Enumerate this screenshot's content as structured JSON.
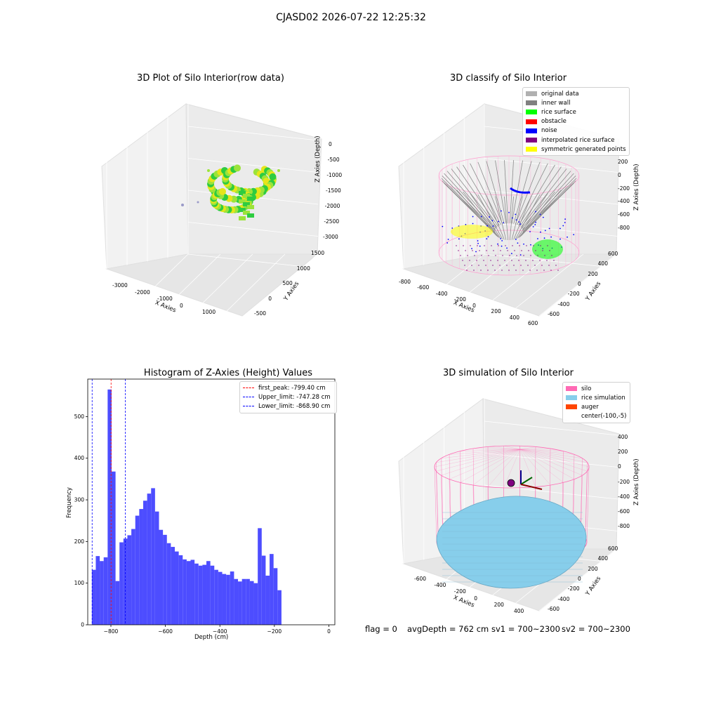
{
  "figure": {
    "suptitle": "CJASD02 2026-07-22 12:25:32",
    "status_line": {
      "flag": "flag = 0",
      "avg_depth": "avgDepth = 762 cm",
      "sv1": "sv1 = 700~2300",
      "sv2": "sv2 = 700~2300"
    }
  },
  "chart_data": [
    {
      "type": "scatter",
      "projection": "3d",
      "title": "3D Plot of Silo Interior(row data)",
      "xlabel": "X Axies",
      "ylabel": "Y Axies",
      "zlabel": "Z Axies (Depth)",
      "xticks": [
        "-3000",
        "-2000",
        "-1000",
        "0",
        "1000"
      ],
      "yticks": [
        "-500",
        "0",
        "500",
        "1000",
        "1500"
      ],
      "zticks": [
        "0",
        "-500",
        "-1000",
        "-1500",
        "-2000",
        "-2500",
        "-3000"
      ],
      "colormap": [
        "#2ecc40",
        "#9be33a",
        "#e5e51a"
      ],
      "note_colors": {
        "outlier": "#9a9ac8"
      }
    },
    {
      "type": "scatter",
      "projection": "3d",
      "title": "3D classify of Silo Interior",
      "xlabel": "X Axies",
      "ylabel": "Y Axies",
      "zlabel": "Z Axies (Depth)",
      "xticks": [
        "-800",
        "-600",
        "-400",
        "-200",
        "0",
        "200",
        "400",
        "600"
      ],
      "yticks": [
        "-600",
        "-400",
        "-200",
        "0",
        "200",
        "400",
        "600"
      ],
      "zticks": [
        "200",
        "0",
        "-200",
        "-400",
        "-600",
        "-800"
      ],
      "legend": [
        {
          "label": "original data",
          "color": "#b0b0b0"
        },
        {
          "label": "inner wall",
          "color": "#808080"
        },
        {
          "label": "rice surface",
          "color": "#00ff00"
        },
        {
          "label": "obstacle",
          "color": "#ff0000"
        },
        {
          "label": "noise",
          "color": "#0000ff"
        },
        {
          "label": "interpolated rice surface",
          "color": "#800080"
        },
        {
          "label": "symmetric generated points",
          "color": "#ffff00"
        }
      ],
      "legend_position": "top-right"
    },
    {
      "type": "bar",
      "title": "Histogram of Z-Axies (Height) Values",
      "xlabel": "Depth (cm)",
      "ylabel": "Frequency",
      "xlim": [
        -885,
        22
      ],
      "ylim": [
        0,
        590
      ],
      "xticks": [
        -800,
        -600,
        -400,
        -200,
        0
      ],
      "xtick_labels": [
        "−800",
        "−600",
        "−400",
        "−200",
        "0"
      ],
      "yticks": [
        0,
        100,
        200,
        300,
        400,
        500
      ],
      "bar_color": "#4d4dff",
      "bin_start": -870,
      "bin_width": 14.5,
      "values": [
        132,
        165,
        153,
        162,
        565,
        368,
        105,
        198,
        207,
        215,
        230,
        262,
        278,
        298,
        315,
        328,
        272,
        228,
        216,
        196,
        187,
        176,
        167,
        157,
        153,
        156,
        147,
        142,
        144,
        153,
        142,
        132,
        127,
        122,
        120,
        128,
        110,
        104,
        110,
        110,
        105,
        100,
        232,
        166,
        118,
        170,
        136,
        83
      ],
      "vlines": [
        {
          "label": "first_peak: -799.40 cm",
          "x": -799.4,
          "color": "#ff0000"
        },
        {
          "label": "Upper_limit: -747.28 cm",
          "x": -747.28,
          "color": "#0000ff"
        },
        {
          "label": "Lower_limit: -868.90 cm",
          "x": -868.9,
          "color": "#0000ff"
        }
      ],
      "legend_position": "top-right"
    },
    {
      "type": "scatter",
      "projection": "3d",
      "title": "3D simulation of Silo Interior",
      "xlabel": "X Axies",
      "ylabel": "Y Axies",
      "zlabel": "Z Axies (Depth)",
      "xticks": [
        "-600",
        "-400",
        "-200",
        "0",
        "200",
        "400"
      ],
      "yticks": [
        "-600",
        "-400",
        "-200",
        "0",
        "200",
        "400",
        "600"
      ],
      "zticks": [
        "400",
        "200",
        "0",
        "-200",
        "-400",
        "-600",
        "-800"
      ],
      "legend": [
        {
          "label": "silo",
          "color": "#ff69b4"
        },
        {
          "label": "rice simulation",
          "color": "#87ceeb"
        },
        {
          "label": "auger",
          "color": "#ff4500"
        },
        {
          "label": "center(-100,-5)",
          "color": ""
        }
      ],
      "legend_position": "top-right"
    }
  ]
}
